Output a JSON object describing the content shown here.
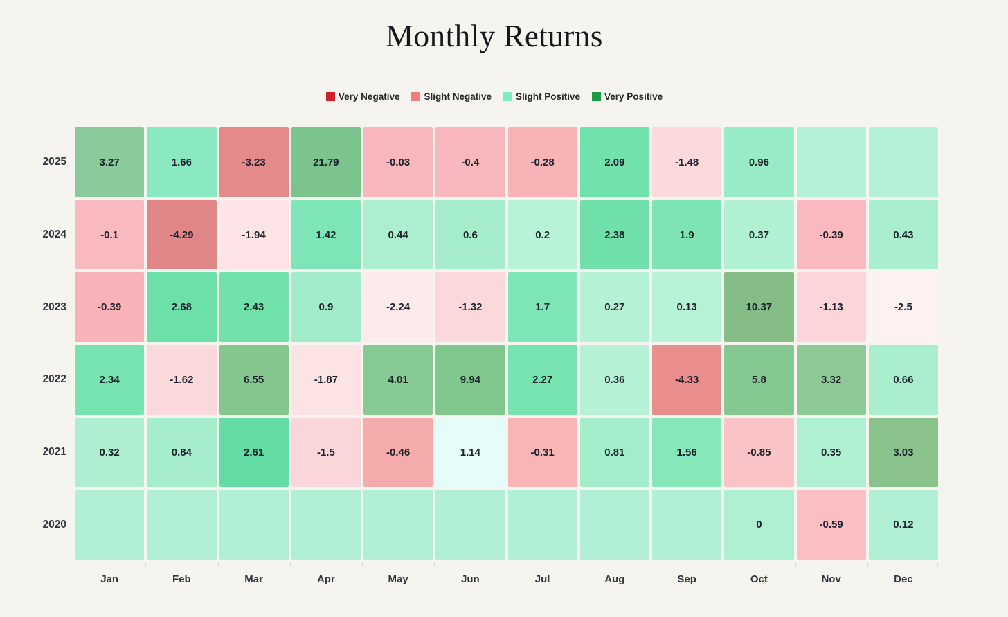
{
  "title": "Monthly Returns",
  "legend": {
    "items": [
      {
        "label": "Very Negative",
        "color": "#cf2127"
      },
      {
        "label": "Slight Negative",
        "color": "#f47b7b"
      },
      {
        "label": "Slight Positive",
        "color": "#7debc4"
      },
      {
        "label": "Very Positive",
        "color": "#1a9c44"
      }
    ]
  },
  "colors": {
    "background": "#f6f4ef",
    "tick": "#d9d6cf",
    "axis_text": "#32363f",
    "value_text": "#1d222b"
  },
  "chart_data": {
    "type": "heatmap",
    "title": "Monthly Returns",
    "x_categories": [
      "Jan",
      "Feb",
      "Mar",
      "Apr",
      "May",
      "Jun",
      "Jul",
      "Aug",
      "Sep",
      "Oct",
      "Nov",
      "Dec"
    ],
    "y_categories": [
      "2025",
      "2024",
      "2023",
      "2022",
      "2021",
      "2020"
    ],
    "legend_position": "top-center",
    "values": [
      [
        3.27,
        1.66,
        -3.23,
        21.79,
        -0.03,
        -0.4,
        -0.28,
        2.09,
        -1.48,
        0.96,
        null,
        null
      ],
      [
        -0.1,
        -4.29,
        -1.94,
        1.42,
        0.44,
        0.6,
        0.2,
        2.38,
        1.9,
        0.37,
        -0.39,
        0.43
      ],
      [
        -0.39,
        2.68,
        2.43,
        0.9,
        -2.24,
        -1.32,
        1.7,
        0.27,
        0.13,
        10.37,
        -1.13,
        -2.5
      ],
      [
        2.34,
        -1.62,
        6.55,
        -1.87,
        4.01,
        9.94,
        2.27,
        0.36,
        -4.33,
        5.8,
        3.32,
        0.66
      ],
      [
        0.32,
        0.84,
        2.61,
        -1.5,
        -0.46,
        1.14,
        -0.31,
        0.81,
        1.56,
        -0.85,
        0.35,
        3.03
      ],
      [
        null,
        null,
        null,
        null,
        null,
        null,
        null,
        null,
        null,
        0,
        -0.59,
        0.12
      ]
    ],
    "cell_colors": [
      [
        "#8bca9b",
        "#8ae9c1",
        "#e58a8a",
        "#7cc48d",
        "#f8b7bc",
        "#f8b7bc",
        "#f8b3b7",
        "#72e2ad",
        "#fcdadc",
        "#97ebc5",
        "#b4f1d7",
        "#b4f1d7"
      ],
      [
        "#f9babf",
        "#e18687",
        "#fde5e7",
        "#7de5b6",
        "#abefcf",
        "#a6edcb",
        "#b8f2d7",
        "#6fe0a9",
        "#7ee4b4",
        "#b0f0d3",
        "#f9b9be",
        "#a9eecd"
      ],
      [
        "#f9b3b8",
        "#6ce0a8",
        "#72e2ac",
        "#a2ecca",
        "#fdeaeb",
        "#fbd8da",
        "#7ee5b7",
        "#b5f1d5",
        "#b7f1d6",
        "#84bd85",
        "#fbd5d7",
        "#fdf2f1"
      ],
      [
        "#76e3b0",
        "#fbd9db",
        "#85c68f",
        "#fce4e5",
        "#87ca95",
        "#80c78d",
        "#76e3b0",
        "#b6f1d5",
        "#e98e8d",
        "#86c892",
        "#8dc897",
        "#aaeecd"
      ],
      [
        "#aeefd1",
        "#a6edcb",
        "#63dda4",
        "#fbd6d8",
        "#f5abab",
        "#e6fcf8",
        "#f9b4b6",
        "#a4edca",
        "#85e7ba",
        "#fac4c7",
        "#b0f0d2",
        "#8ac28c"
      ],
      [
        "#b2f0d5",
        "#b2f0d5",
        "#b2f0d5",
        "#b2f0d5",
        "#b2f0d5",
        "#b2f0d5",
        "#b2f0d5",
        "#b2f0d5",
        "#b2f0d5",
        "#aff0d3",
        "#fbbfc3",
        "#b1f0d4"
      ]
    ]
  }
}
